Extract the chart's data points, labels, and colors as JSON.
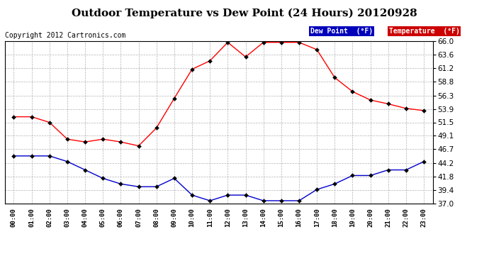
{
  "title": "Outdoor Temperature vs Dew Point (24 Hours) 20120928",
  "copyright": "Copyright 2012 Cartronics.com",
  "hours": [
    "00:00",
    "01:00",
    "02:00",
    "03:00",
    "04:00",
    "05:00",
    "06:00",
    "07:00",
    "08:00",
    "09:00",
    "10:00",
    "11:00",
    "12:00",
    "13:00",
    "14:00",
    "15:00",
    "16:00",
    "17:00",
    "18:00",
    "19:00",
    "20:00",
    "21:00",
    "22:00",
    "23:00"
  ],
  "temperature": [
    52.5,
    52.5,
    51.5,
    48.5,
    48.0,
    48.5,
    48.0,
    47.3,
    50.5,
    55.8,
    61.0,
    62.5,
    65.8,
    63.2,
    65.8,
    65.8,
    65.8,
    64.5,
    59.5,
    57.0,
    55.5,
    54.8,
    54.0,
    53.6
  ],
  "dew_point": [
    45.5,
    45.5,
    45.5,
    44.5,
    43.0,
    41.5,
    40.5,
    40.0,
    40.0,
    41.5,
    38.5,
    37.5,
    38.5,
    38.5,
    37.5,
    37.5,
    37.5,
    39.5,
    40.5,
    42.0,
    42.0,
    43.0,
    43.0,
    44.5
  ],
  "temp_color": "#ff0000",
  "dew_color": "#0000cc",
  "ylim_min": 37.0,
  "ylim_max": 66.0,
  "yticks": [
    37.0,
    39.4,
    41.8,
    44.2,
    46.7,
    49.1,
    51.5,
    53.9,
    56.3,
    58.8,
    61.2,
    63.6,
    66.0
  ],
  "background_color": "#ffffff",
  "plot_bg_color": "#ffffff",
  "grid_color": "#aaaaaa",
  "title_fontsize": 11,
  "copyright_fontsize": 7,
  "legend_dew_label": "Dew Point  (°F)",
  "legend_temp_label": "Temperature  (°F)",
  "legend_dew_bg": "#0000bb",
  "legend_temp_bg": "#cc0000"
}
